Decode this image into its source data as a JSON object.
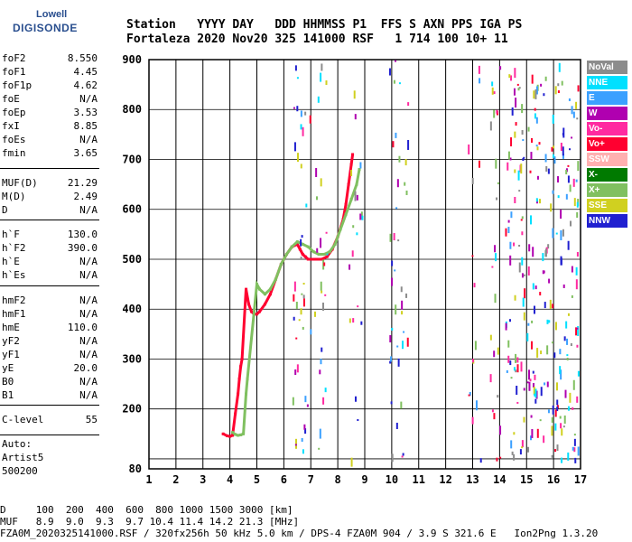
{
  "logo": {
    "line1": "Lowell",
    "line2": "DIGISONDE"
  },
  "header": {
    "line1": "Station   YYYY DAY   DDD HHMMSS P1  FFS S AXN PPS IGA PS",
    "line2": "Fortaleza 2020 Nov20 325 141000 RSF   1 714 100 10+ 11"
  },
  "params": [
    {
      "name": "foF2",
      "value": "8.550"
    },
    {
      "name": "foF1",
      "value": "4.45"
    },
    {
      "name": "foF1p",
      "value": "4.62"
    },
    {
      "name": "foE",
      "value": "N/A"
    },
    {
      "name": "foEp",
      "value": "3.53"
    },
    {
      "name": "fxI",
      "value": "8.85"
    },
    {
      "name": "foEs",
      "value": "N/A"
    },
    {
      "name": "fmin",
      "value": "3.65"
    },
    {
      "name": "MUF(D)",
      "value": "21.29"
    },
    {
      "name": "M(D)",
      "value": "2.49"
    },
    {
      "name": "D",
      "value": "N/A"
    },
    {
      "name": "h`F",
      "value": "130.0"
    },
    {
      "name": "h`F2",
      "value": "390.0"
    },
    {
      "name": "h`E",
      "value": "N/A"
    },
    {
      "name": "h`Es",
      "value": "N/A"
    },
    {
      "name": "hmF2",
      "value": "N/A"
    },
    {
      "name": "hmF1",
      "value": "N/A"
    },
    {
      "name": "hmE",
      "value": "110.0"
    },
    {
      "name": "yF2",
      "value": "N/A"
    },
    {
      "name": "yF1",
      "value": "N/A"
    },
    {
      "name": "yE",
      "value": "20.0"
    },
    {
      "name": "B0",
      "value": "N/A"
    },
    {
      "name": "B1",
      "value": "N/A"
    },
    {
      "name": "C-level",
      "value": "55"
    }
  ],
  "auto": {
    "line1": "Auto:",
    "line2": "Artist5",
    "line3": "500200"
  },
  "legend": [
    {
      "label": "NoVal",
      "color": "#8c8c8c"
    },
    {
      "label": "NNE",
      "color": "#00e0ff"
    },
    {
      "label": "E",
      "color": "#3ba0ff"
    },
    {
      "label": "W",
      "color": "#b000b0"
    },
    {
      "label": "Vo-",
      "color": "#ff2aa0"
    },
    {
      "label": "Vo+",
      "color": "#ff0030"
    },
    {
      "label": "SSW",
      "color": "#ffb0b0"
    },
    {
      "label": "X-",
      "color": "#007a00"
    },
    {
      "label": "X+",
      "color": "#80c060"
    },
    {
      "label": "SSE",
      "color": "#d0d020"
    },
    {
      "label": "NNW",
      "color": "#2020d0"
    }
  ],
  "footer": {
    "line1": "D     100  200  400  600  800 1000 1500 3000 [km]",
    "line2": "MUF   8.9  9.0  9.3  9.7 10.4 11.4 14.2 21.3 [MHz]",
    "line3": "FZA0M_2020325141000.RSF / 320fx256h 50 kHz 5.0 km / DPS-4 FZA0M 904 / 3.9 S 321.6 E   Ion2Png 1.3.20"
  },
  "chart_data": {
    "type": "scatter",
    "xlim": [
      1,
      17
    ],
    "ylim": [
      80,
      900
    ],
    "x_ticks": [
      1,
      2,
      3,
      4,
      5,
      6,
      7,
      8,
      9,
      10,
      11,
      12,
      13,
      14,
      15,
      16,
      17
    ],
    "y_ticks": [
      80,
      100,
      200,
      300,
      400,
      500,
      600,
      700,
      800,
      900
    ],
    "y_tick_labels": [
      "80",
      "",
      "200",
      "300",
      "400",
      "500",
      "600",
      "700",
      "800",
      "900"
    ],
    "grid": true,
    "series": [
      {
        "name": "Vo+",
        "color": "#ff0030",
        "x": [
          3.75,
          3.9,
          4.0,
          4.1,
          4.2,
          4.3,
          4.35,
          4.4,
          4.45,
          4.6,
          4.7,
          4.8,
          4.9,
          5.0,
          5.1,
          5.3,
          5.5,
          5.7,
          5.9,
          6.1,
          6.3,
          6.5,
          6.6,
          6.7,
          6.8,
          6.9,
          7.0,
          7.2,
          7.4,
          7.6,
          7.8,
          8.0,
          8.2,
          8.3,
          8.4,
          8.5,
          8.55
        ],
        "y": [
          150,
          146,
          145,
          147,
          190,
          230,
          260,
          285,
          300,
          440,
          410,
          395,
          390,
          390,
          395,
          410,
          430,
          460,
          490,
          510,
          525,
          530,
          520,
          510,
          505,
          500,
          500,
          500,
          500,
          505,
          520,
          545,
          580,
          610,
          650,
          690,
          710
        ]
      },
      {
        "name": "X+",
        "color": "#80c060",
        "x": [
          4.1,
          4.2,
          4.3,
          4.4,
          4.5,
          4.6,
          4.65,
          5.0,
          5.1,
          5.3,
          5.5,
          5.7,
          5.9,
          6.1,
          6.3,
          6.5,
          6.7,
          6.9,
          7.1,
          7.3,
          7.5,
          7.7,
          7.9,
          8.1,
          8.3,
          8.5,
          8.7,
          8.8
        ],
        "y": [
          153,
          149,
          147,
          148,
          150,
          230,
          260,
          450,
          440,
          430,
          440,
          460,
          490,
          510,
          525,
          535,
          530,
          525,
          515,
          510,
          510,
          515,
          530,
          560,
          590,
          620,
          650,
          680
        ]
      }
    ]
  }
}
